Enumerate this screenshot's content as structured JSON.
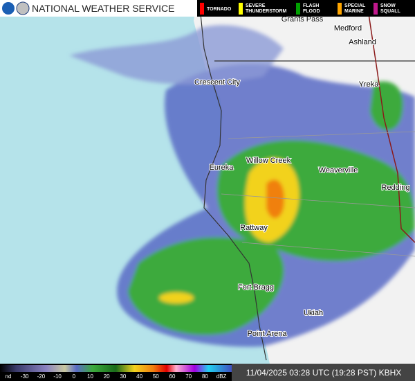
{
  "header": {
    "title": "NATIONAL WEATHER SERVICE",
    "warnings": [
      {
        "lines": [
          "TORNADO"
        ],
        "color": "#ff0000"
      },
      {
        "lines": [
          "SEVERE",
          "THUNDERSTORM"
        ],
        "color": "#ffff00"
      },
      {
        "lines": [
          "FLASH",
          "FLOOD"
        ],
        "color": "#00a000"
      },
      {
        "lines": [
          "SPECIAL",
          "MARINE"
        ],
        "color": "#ffa500"
      },
      {
        "lines": [
          "SNOW",
          "SQUALL"
        ],
        "color": "#c0188c"
      }
    ]
  },
  "places": [
    "Grants Pass",
    "Medford",
    "Ashland",
    "Crescent City",
    "Yreka",
    "Willow Creek",
    "Eureka",
    "Weaverville",
    "Redding",
    "Rattway",
    "Fort Bragg",
    "Ukiah",
    "Point Arena"
  ],
  "scale": {
    "labels": [
      "nd",
      "-30",
      "-20",
      "-10",
      "0",
      "10",
      "20",
      "30",
      "40",
      "50",
      "60",
      "70",
      "80",
      "dBZ"
    ]
  },
  "timestamp": "11/04/2025 03:28 UTC (19:28 PST) KBHX"
}
